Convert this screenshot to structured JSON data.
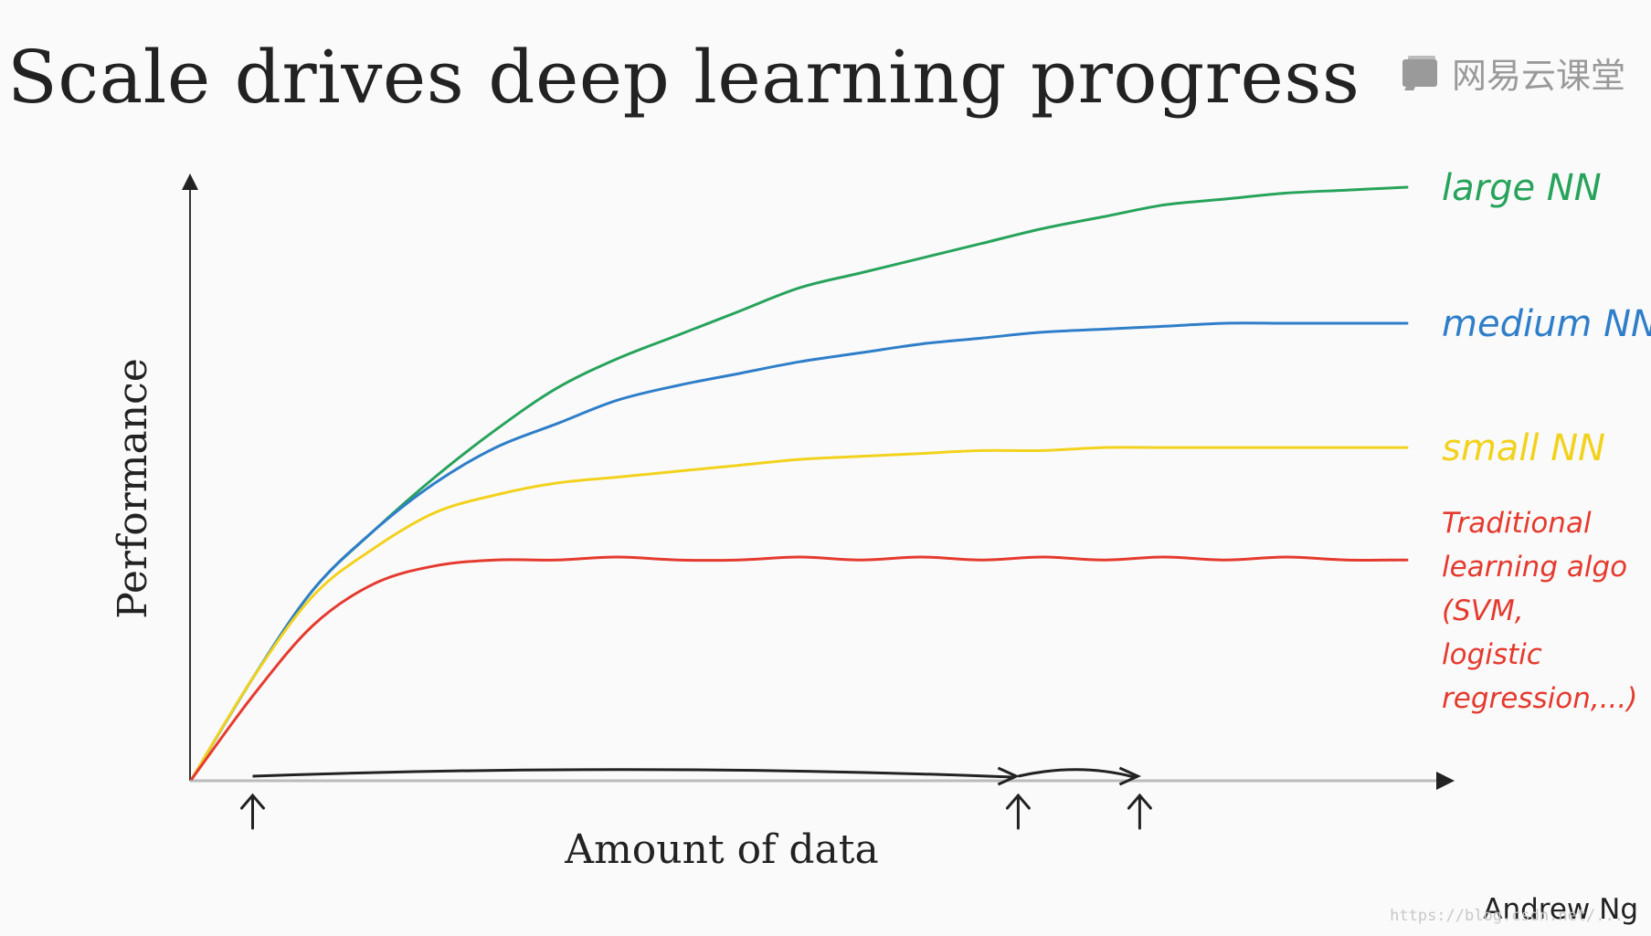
{
  "slide": {
    "title": "Scale drives deep learning progress",
    "brand": {
      "text": "网易云课堂",
      "icon": "netease-cloud-classroom-icon",
      "color": "#9a9a9a"
    },
    "author": "Andrew Ng",
    "watermark": "https://blog.csdn.net/..."
  },
  "chart_data": {
    "type": "line",
    "title": "Scale drives deep learning progress",
    "xlabel": "Amount of data",
    "ylabel": "Performance",
    "xlim": [
      0,
      100
    ],
    "ylim": [
      0,
      100
    ],
    "grid": false,
    "legend": "inline-right",
    "x": [
      0,
      5,
      10,
      15,
      20,
      25,
      30,
      35,
      40,
      45,
      50,
      55,
      60,
      65,
      70,
      75,
      80,
      85,
      90,
      95,
      100
    ],
    "series": [
      {
        "name": "large NN",
        "color": "#27a35b",
        "label_lines": [
          "large NN"
        ],
        "values": [
          0,
          17,
          32,
          42,
          51,
          59,
          66,
          71,
          75,
          79,
          83,
          85.5,
          88,
          90.5,
          93,
          95,
          97,
          98,
          99,
          99.5,
          100
        ]
      },
      {
        "name": "medium NN",
        "color": "#2f7ec9",
        "label_lines": [
          "medium NN"
        ],
        "values": [
          0,
          17,
          32,
          42,
          50,
          56,
          60,
          64,
          66.5,
          68.5,
          70.5,
          72,
          73.5,
          74.5,
          75.5,
          76,
          76.5,
          77,
          77,
          77,
          77
        ]
      },
      {
        "name": "small NN",
        "color": "#f2d21d",
        "label_lines": [
          "small NN"
        ],
        "values": [
          0,
          17,
          31,
          39,
          45,
          48,
          50,
          51,
          52,
          53,
          54,
          54.5,
          55,
          55.5,
          55.5,
          56,
          56,
          56,
          56,
          56,
          56
        ]
      },
      {
        "name": "Traditional learning algo (SVM, logistic regression,...)",
        "color": "#e53a2e",
        "label_lines": [
          "Traditional",
          "learning algo",
          "(SVM,",
          "logistic",
          "regression,...)"
        ],
        "values": [
          0,
          14,
          26,
          33,
          36,
          37,
          37,
          37.5,
          37,
          37,
          37.5,
          37,
          37.5,
          37,
          37.5,
          37,
          37.5,
          37,
          37.5,
          37,
          37
        ]
      }
    ],
    "annotations": [
      {
        "type": "range-arrow",
        "from": 5,
        "to": 68,
        "marker_at": 5
      },
      {
        "type": "range-arrow",
        "from": 68,
        "to": 78,
        "marker_at": 68
      },
      {
        "type": "marker",
        "at": 78
      }
    ]
  }
}
